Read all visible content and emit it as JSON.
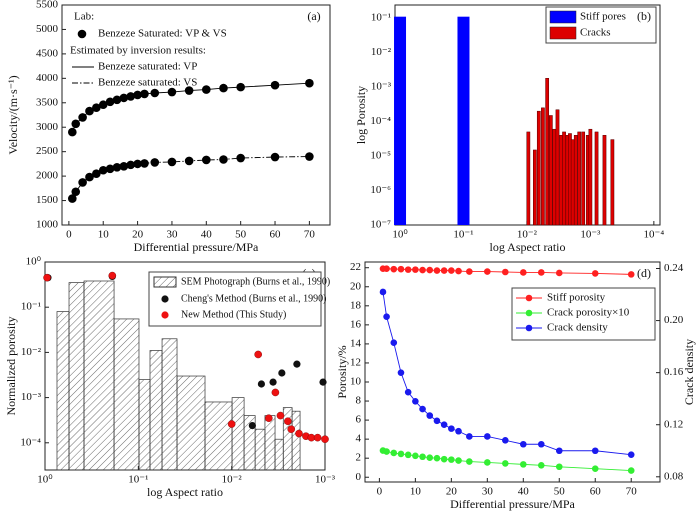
{
  "chart_data": [
    {
      "type": "line",
      "annotation": "(a)",
      "xlabel": "Differential pressure/MPa",
      "ylabel": "Velocity/(m·s⁻¹)",
      "legend_title": "Lab:",
      "marker_label": "Benzeze Saturated: VP & VS",
      "legend_subtitle": "Estimated by inversion results:",
      "x": [
        1,
        2,
        4,
        6,
        8,
        10,
        12,
        14,
        16,
        18,
        20,
        22,
        25,
        30,
        35,
        40,
        45,
        50,
        60,
        70
      ],
      "series": [
        {
          "name": "Benzeze saturated: VP",
          "color": "#000000",
          "line": "solid",
          "markers": true,
          "values": [
            2900,
            3070,
            3200,
            3330,
            3400,
            3460,
            3520,
            3560,
            3600,
            3630,
            3660,
            3680,
            3700,
            3720,
            3750,
            3770,
            3800,
            3820,
            3860,
            3900
          ]
        },
        {
          "name": "Benzeze saturated: VS",
          "color": "#000000",
          "line": "dashdot",
          "markers": true,
          "values": [
            1540,
            1680,
            1870,
            1980,
            2050,
            2120,
            2150,
            2180,
            2200,
            2230,
            2250,
            2260,
            2280,
            2290,
            2310,
            2330,
            2340,
            2370,
            2390,
            2400
          ]
        }
      ],
      "xlim": [
        -2,
        76
      ],
      "xticks": [
        0,
        10,
        20,
        30,
        40,
        50,
        60,
        70
      ],
      "ylim": [
        1000,
        5500
      ],
      "yticks": [
        1000,
        1500,
        2000,
        2500,
        3000,
        3500,
        4000,
        4500,
        5000,
        5500
      ]
    },
    {
      "type": "bar",
      "annotation": "(b)",
      "xlabel": "log Aspect ratio",
      "ylabel": "log Porosity",
      "xlog": true,
      "ylog": true,
      "legend": "upper right",
      "series": [
        {
          "name": "Stiff pores",
          "color": "#0000ff",
          "x": [
            1,
            0.1
          ],
          "values": [
            0.11,
            0.11
          ]
        },
        {
          "name": "Cracks",
          "color": "#dd0000",
          "x": [
            0.0095,
            0.0075,
            0.0065,
            0.0056,
            0.0048,
            0.0042,
            0.0037,
            0.0033,
            0.0029,
            0.0026,
            0.0023,
            0.0021,
            0.0019,
            0.0017,
            0.0015,
            0.0013,
            0.0011,
            0.001,
            0.0008,
            0.0006,
            0.00045
          ],
          "values": [
            5e-05,
            1.5e-05,
            0.0002,
            0.00025,
            0.0018,
            0.00015,
            6e-05,
            0.00022,
            4e-05,
            5e-05,
            4e-05,
            4.5e-05,
            3e-05,
            4e-05,
            5e-05,
            5e-05,
            4e-05,
            6e-05,
            5e-05,
            4e-05,
            3e-05
          ]
        }
      ],
      "xlim": [
        1.2,
        8e-05
      ],
      "xticks": [
        {
          "value": 1,
          "label": "10⁰"
        },
        {
          "value": 0.1,
          "label": "10⁻¹"
        },
        {
          "value": 0.01,
          "label": "10⁻²"
        },
        {
          "value": 0.001,
          "label": "10⁻³"
        },
        {
          "value": 0.0001,
          "label": "10⁻⁴"
        }
      ],
      "ylim": [
        1e-07,
        0.24
      ],
      "yticks": [
        {
          "value": 1e-07,
          "label": "10⁻⁷"
        },
        {
          "value": 1e-06,
          "label": "10⁻⁶"
        },
        {
          "value": 1e-05,
          "label": "10⁻⁵"
        },
        {
          "value": 0.0001,
          "label": "10⁻⁴"
        },
        {
          "value": 0.001,
          "label": "10⁻³"
        },
        {
          "value": 0.01,
          "label": "10⁻²"
        },
        {
          "value": 0.1,
          "label": "10⁻¹"
        }
      ]
    },
    {
      "type": "histogram",
      "annotation": "(c)",
      "xlabel": "log Aspect ratio",
      "ylabel": "Normalized  porosity",
      "xlog": true,
      "ylog": true,
      "hist_label": "SEM Photograph (Burns et al., 1990)",
      "bins": [
        0.744,
        0.553,
        0.382,
        0.182,
        0.0984,
        0.075,
        0.0557,
        0.0385,
        0.0193,
        0.0099,
        0.00736,
        0.0056,
        0.0044,
        0.00343,
        0.0028,
        0.00225,
        0.00185
      ],
      "counts": [
        0.08,
        0.35,
        0.38,
        0.055,
        0.0025,
        0.011,
        0.02,
        0.003,
        0.0008,
        0.001,
        0.0004,
        0.0002,
        0.0004,
        0.00012,
        0.0006,
        0.0005
      ],
      "series": [
        {
          "name": "Cheng's Method (Burns et al., 1990)",
          "color": "#111111",
          "x": [
            0.93,
            0.19,
            0.006,
            0.0048,
            0.0036,
            0.0029,
            0.002,
            0.00105
          ],
          "values": [
            0.45,
            0.48,
            0.00024,
            0.002,
            0.0022,
            0.0035,
            0.0055,
            0.0022
          ]
        },
        {
          "name": "New Method (This Study)",
          "color": "#ee1111",
          "x": [
            0.95,
            0.19,
            0.01,
            0.0052,
            0.0034,
            0.004,
            0.003,
            0.0025,
            0.0023,
            0.0019,
            0.0016,
            0.0014,
            0.0012,
            0.001
          ],
          "values": [
            0.45,
            0.5,
            0.00026,
            0.009,
            0.0013,
            0.00035,
            0.0004,
            0.0003,
            0.0002,
            0.00016,
            0.00014,
            0.00013,
            0.00013,
            0.00012
          ]
        }
      ],
      "xlim": [
        1,
        0.001
      ],
      "xticks": [
        {
          "value": 1,
          "label": "10⁰"
        },
        {
          "value": 0.1,
          "label": "10⁻¹"
        },
        {
          "value": 0.01,
          "label": "10⁻²"
        },
        {
          "value": 0.001,
          "label": "10⁻³"
        }
      ],
      "ylim": [
        2.5e-05,
        1
      ],
      "yticks": [
        {
          "value": 1,
          "label": "10⁰"
        },
        {
          "value": 0.1,
          "label": "10⁻¹"
        },
        {
          "value": 0.01,
          "label": "10⁻²"
        },
        {
          "value": 0.001,
          "label": "10⁻³"
        },
        {
          "value": 0.0001,
          "label": "10⁻⁴"
        }
      ]
    },
    {
      "type": "line",
      "annotation": "(d)",
      "xlabel": "Differential pressure/MPa",
      "ylabel": "Porosity/%",
      "y2label": "Crack density",
      "legend": "upper right",
      "x": [
        1,
        2,
        4,
        6,
        8,
        10,
        12,
        14,
        16,
        18,
        20,
        22,
        25,
        30,
        35,
        40,
        45,
        50,
        60,
        70
      ],
      "series": [
        {
          "name": "Stiff porosity",
          "color": "#ff2020",
          "line": "solid",
          "markers": true,
          "values": [
            21.9,
            21.9,
            21.85,
            21.85,
            21.8,
            21.8,
            21.75,
            21.75,
            21.7,
            21.7,
            21.7,
            21.65,
            21.6,
            21.6,
            21.55,
            21.5,
            21.5,
            21.45,
            21.4,
            21.3
          ]
        },
        {
          "name": "Crack porosity×10",
          "color": "#33ee33",
          "line": "solid",
          "markers": true,
          "values": [
            2.8,
            2.7,
            2.55,
            2.45,
            2.35,
            2.25,
            2.15,
            2.05,
            2.0,
            1.9,
            1.85,
            1.75,
            1.65,
            1.55,
            1.45,
            1.35,
            1.25,
            1.1,
            0.9,
            0.7
          ]
        },
        {
          "name": "Crack  density",
          "color": "#1a1aee",
          "line": "solid",
          "markers": true,
          "axis": "y2",
          "values": [
            0.222,
            0.203,
            0.183,
            0.16,
            0.145,
            0.138,
            0.132,
            0.127,
            0.123,
            0.12,
            0.117,
            0.115,
            0.111,
            0.111,
            0.108,
            0.105,
            0.105,
            0.1,
            0.1,
            0.097
          ]
        }
      ],
      "xlim": [
        -4,
        78
      ],
      "xticks": [
        0,
        10,
        20,
        30,
        40,
        50,
        60,
        70
      ],
      "ylim": [
        -0.5,
        22.6
      ],
      "yticks": [
        0,
        2,
        4,
        6,
        8,
        10,
        12,
        14,
        16,
        18,
        20,
        22
      ],
      "y2lim": [
        0.076,
        0.245
      ],
      "y2ticks": [
        0.08,
        0.12,
        0.16,
        {
          "value": 0.2,
          "label": "0.20"
        },
        0.24
      ]
    }
  ]
}
